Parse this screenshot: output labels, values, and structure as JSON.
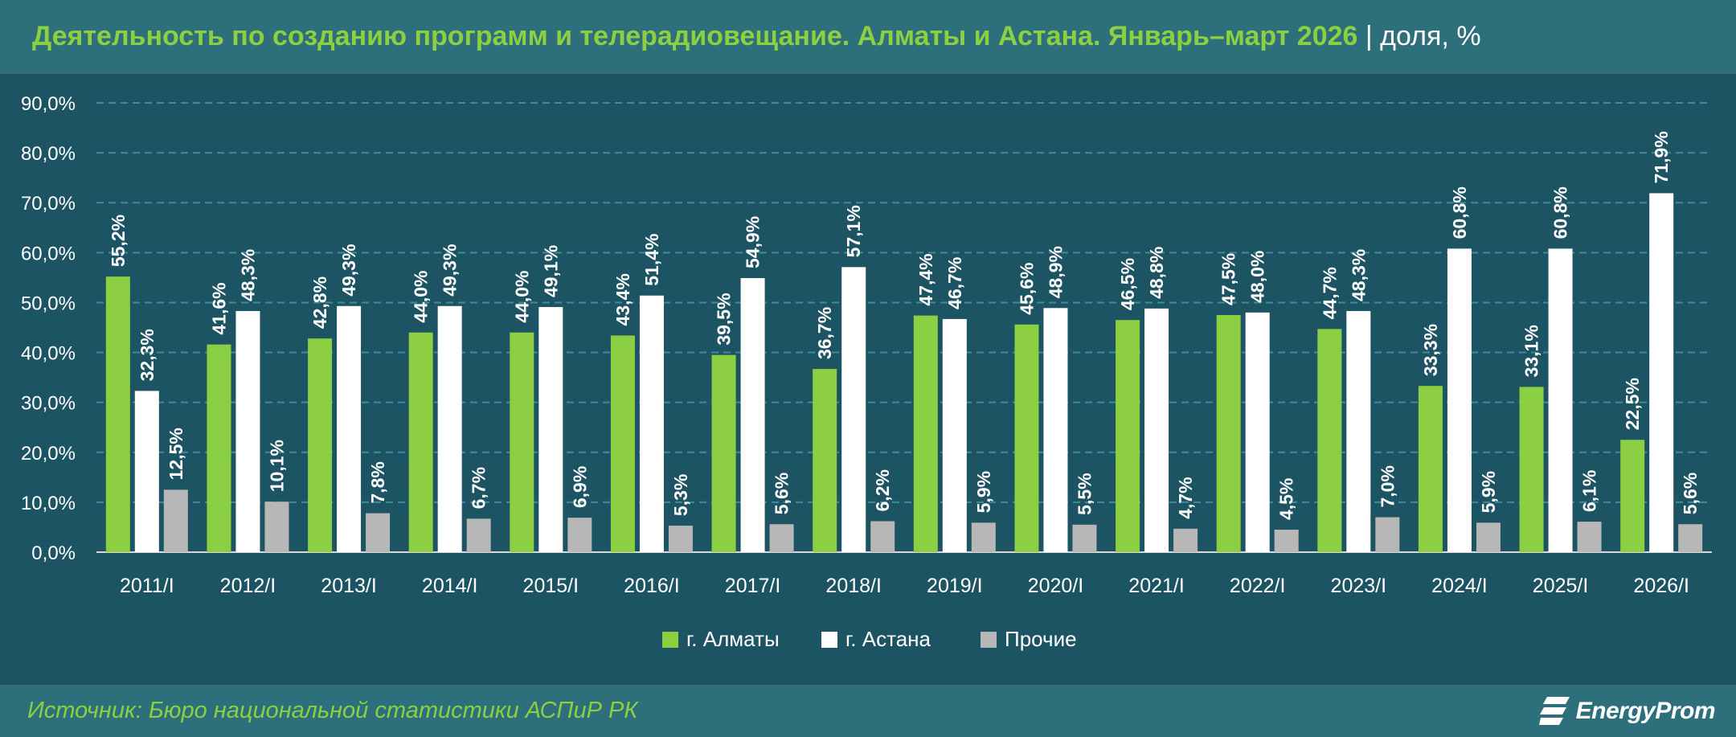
{
  "header": {
    "title": "Деятельность по созданию программ и телерадиовещание. Алматы и Астана. Январь–март 2026",
    "separator": "|",
    "unit": "доля, %"
  },
  "footer": {
    "source": "Источник: Бюро национальной статистики АСПиР РК",
    "brand": "EnergyProm"
  },
  "colors": {
    "almaty": "#8ccf42",
    "astana": "#ffffff",
    "other": "#b7b7b7",
    "grid": "#3f8c98",
    "text": "#ffffff"
  },
  "chart_data": {
    "type": "bar",
    "categories": [
      "2011/I",
      "2012/I",
      "2013/I",
      "2014/I",
      "2015/I",
      "2016/I",
      "2017/I",
      "2018/I",
      "2019/I",
      "2020/I",
      "2021/I",
      "2022/I",
      "2023/I",
      "2024/I",
      "2025/I",
      "2026/I"
    ],
    "series": [
      {
        "name": "г. Алматы",
        "values": [
          55.2,
          41.6,
          42.8,
          44.0,
          44.0,
          43.4,
          39.5,
          36.7,
          47.4,
          45.6,
          46.5,
          47.5,
          44.7,
          33.3,
          33.1,
          22.5
        ],
        "labels": [
          "55,2%",
          "41,6%",
          "42,8%",
          "44,0%",
          "44,0%",
          "43,4%",
          "39,5%",
          "36,7%",
          "47,4%",
          "45,6%",
          "46,5%",
          "47,5%",
          "44,7%",
          "33,3%",
          "33,1%",
          "22,5%"
        ]
      },
      {
        "name": "г. Астана",
        "values": [
          32.3,
          48.3,
          49.3,
          49.3,
          49.1,
          51.4,
          54.9,
          57.1,
          46.7,
          48.9,
          48.8,
          48.0,
          48.3,
          60.8,
          60.8,
          71.9
        ],
        "labels": [
          "32,3%",
          "48,3%",
          "49,3%",
          "49,3%",
          "49,1%",
          "51,4%",
          "54,9%",
          "57,1%",
          "46,7%",
          "48,9%",
          "48,8%",
          "48,0%",
          "48,3%",
          "60,8%",
          "60,8%",
          "71,9%"
        ]
      },
      {
        "name": "Прочие",
        "values": [
          12.5,
          10.1,
          7.8,
          6.7,
          6.9,
          5.3,
          5.6,
          6.2,
          5.9,
          5.5,
          4.7,
          4.5,
          7.0,
          5.9,
          6.1,
          5.6
        ],
        "labels": [
          "12,5%",
          "10,1%",
          "7,8%",
          "6,7%",
          "6,9%",
          "5,3%",
          "5,6%",
          "6,2%",
          "5,9%",
          "5,5%",
          "4,7%",
          "4,5%",
          "7,0%",
          "5,9%",
          "6,1%",
          "5,6%"
        ]
      }
    ],
    "ylim": [
      0,
      90
    ],
    "yticks": [
      "0,0%",
      "10,0%",
      "20,0%",
      "30,0%",
      "40,0%",
      "50,0%",
      "60,0%",
      "70,0%",
      "80,0%",
      "90,0%"
    ],
    "grid": true,
    "legend_position": "bottom-center"
  }
}
